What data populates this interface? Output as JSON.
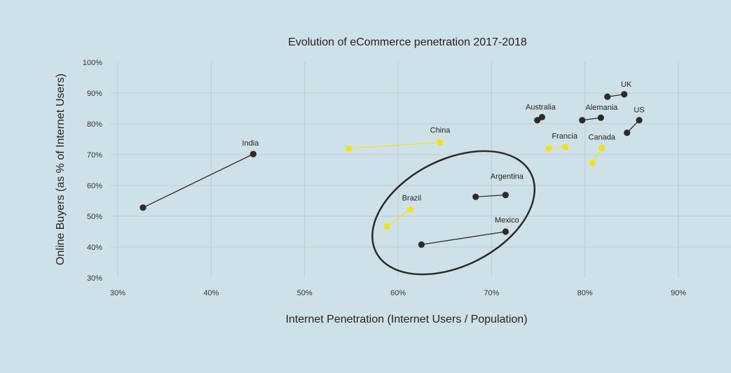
{
  "chart_data": {
    "type": "scatter",
    "title": "Evolution of eCommerce penetration 2017-2018",
    "xlabel": "Internet Penetration (Internet Users / Population)",
    "ylabel": "Online Buyers (as % of Internet Users)",
    "xlim": [
      30,
      90
    ],
    "ylim": [
      30,
      100
    ],
    "xticks": [
      "30%",
      "40%",
      "50%",
      "60%",
      "70%",
      "80%",
      "90%"
    ],
    "yticks": [
      "30%",
      "40%",
      "50%",
      "60%",
      "70%",
      "80%",
      "90%",
      "100%"
    ],
    "grid": true,
    "colors": {
      "dark": "#2b2b2b",
      "highlight": "#f2e21a",
      "grid": "#b9cdd5",
      "background": "#cfe1e8"
    },
    "series": [
      {
        "name": "India",
        "color": "dark",
        "points": [
          [
            32.7,
            52.8
          ],
          [
            44.5,
            70.2
          ]
        ]
      },
      {
        "name": "China",
        "color": "highlight",
        "points": [
          [
            54.7,
            72.0
          ],
          [
            64.5,
            74.0
          ]
        ]
      },
      {
        "name": "Brazil",
        "color": "highlight",
        "points": [
          [
            58.8,
            46.7
          ],
          [
            61.3,
            52.2
          ]
        ]
      },
      {
        "name": "Argentina",
        "color": "dark",
        "points": [
          [
            68.3,
            56.3
          ],
          [
            71.5,
            56.9
          ]
        ]
      },
      {
        "name": "Mexico",
        "color": "dark",
        "points": [
          [
            62.5,
            40.8
          ],
          [
            71.5,
            45.0
          ]
        ]
      },
      {
        "name": "Australia",
        "color": "dark",
        "points": [
          [
            74.9,
            81.2
          ],
          [
            75.4,
            82.2
          ]
        ]
      },
      {
        "name": "Alemania",
        "color": "dark",
        "points": [
          [
            79.7,
            81.2
          ],
          [
            81.7,
            82.0
          ]
        ]
      },
      {
        "name": "UK",
        "color": "dark",
        "points": [
          [
            82.4,
            88.8
          ],
          [
            84.2,
            89.6
          ]
        ]
      },
      {
        "name": "US",
        "color": "dark",
        "points": [
          [
            84.5,
            77.1
          ],
          [
            85.8,
            81.2
          ]
        ]
      },
      {
        "name": "Francia",
        "color": "highlight",
        "points": [
          [
            76.1,
            72.0
          ],
          [
            77.9,
            72.5
          ]
        ]
      },
      {
        "name": "Canada",
        "color": "highlight",
        "points": [
          [
            80.8,
            67.4
          ],
          [
            81.8,
            72.2
          ]
        ]
      }
    ]
  }
}
